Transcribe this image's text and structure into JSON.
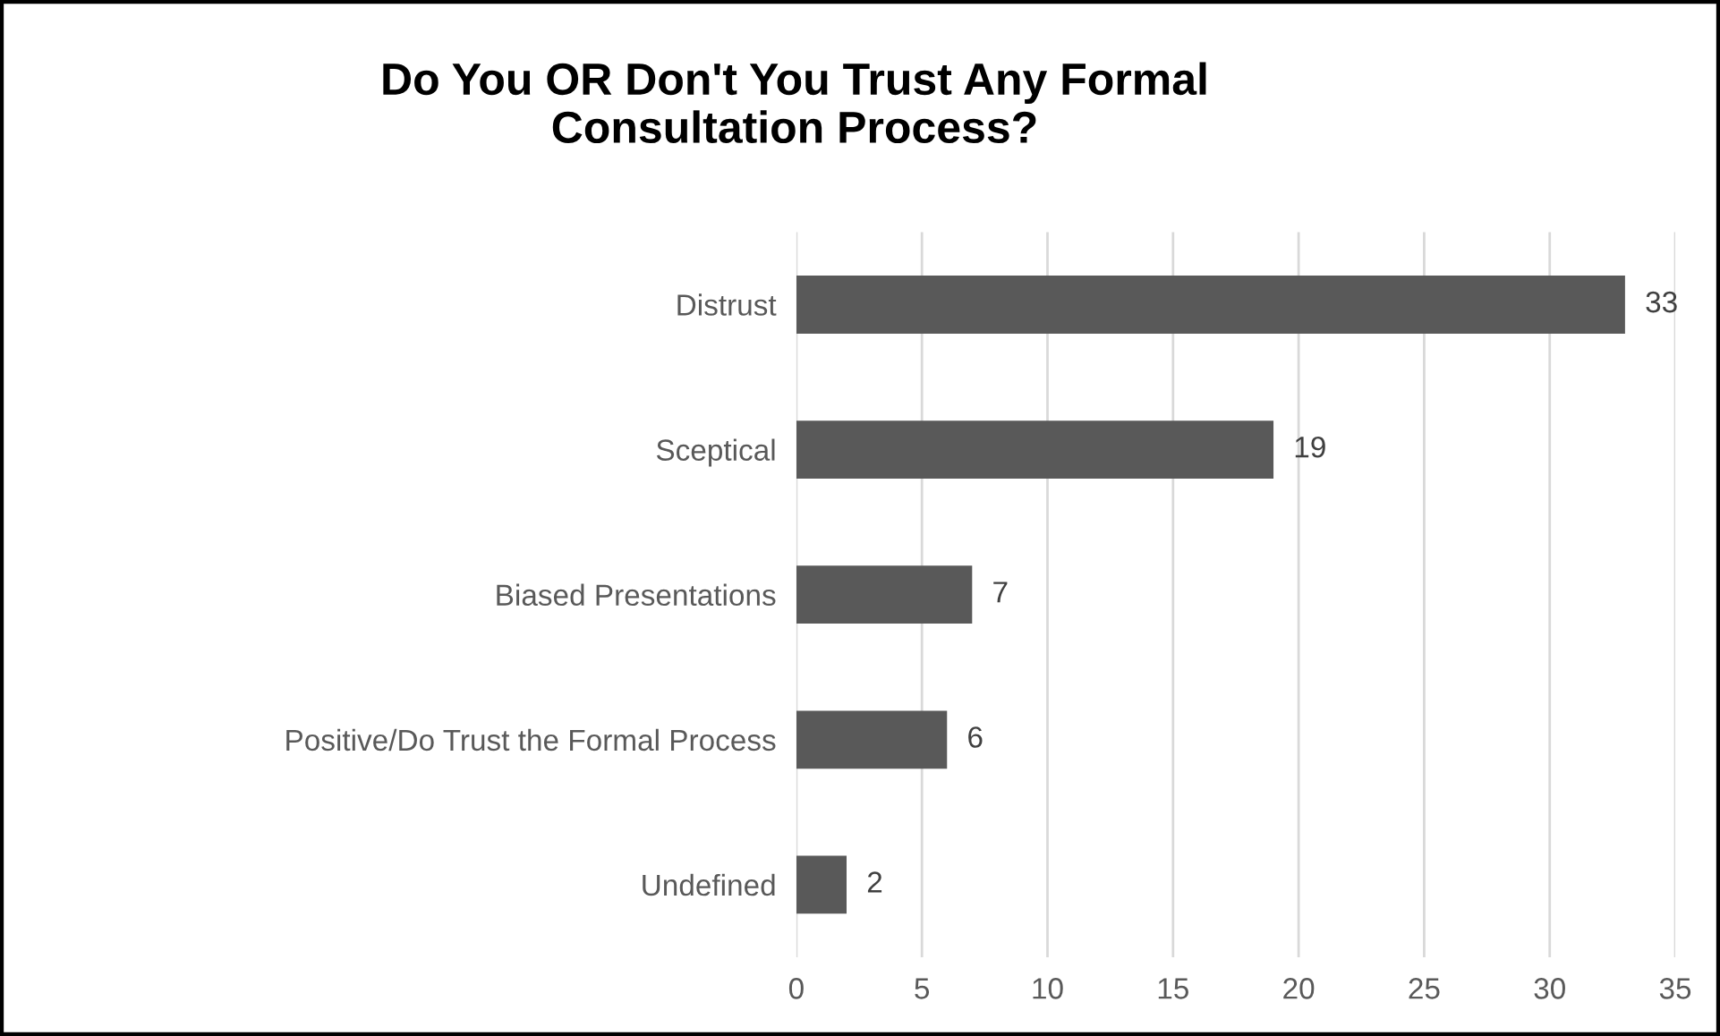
{
  "chart_data": {
    "type": "bar",
    "orientation": "horizontal",
    "title": "Do You OR Don't You Trust Any Formal\nConsultation Process?",
    "categories": [
      "Distrust",
      "Sceptical",
      "Biased Presentations",
      "Positive/Do Trust the Formal Process",
      "Undefined"
    ],
    "values": [
      33,
      19,
      7,
      6,
      2
    ],
    "color": "#595959",
    "xlim": [
      0,
      35
    ],
    "xticks": [
      0,
      5,
      10,
      15,
      20,
      25,
      30,
      35
    ],
    "grid": "x",
    "data_labels": true,
    "legend": false
  }
}
